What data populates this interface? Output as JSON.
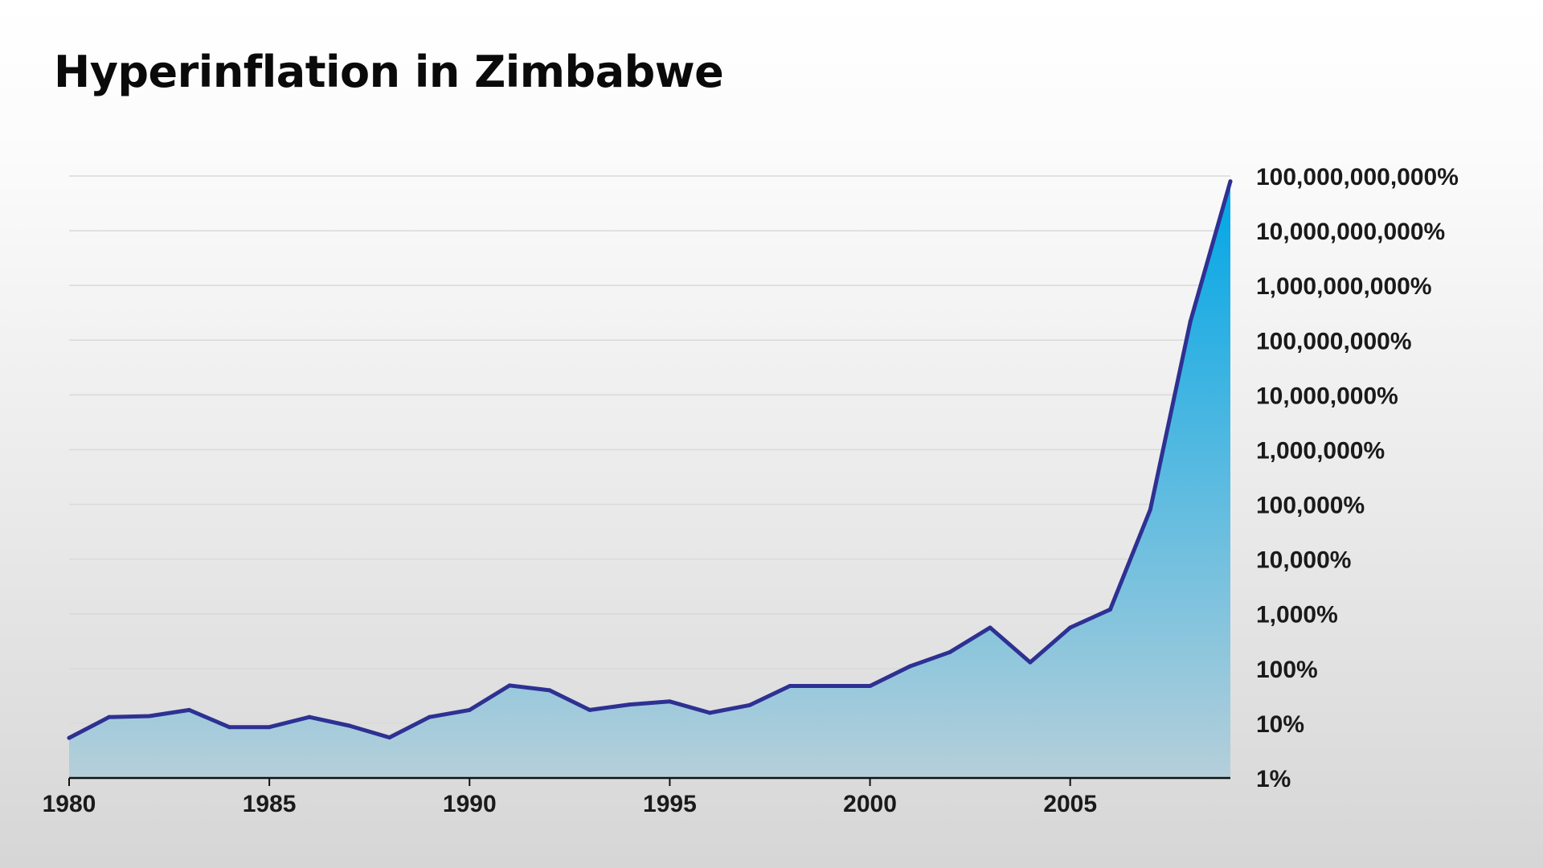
{
  "title": "Hyperinflation in Zimbabwe",
  "colors": {
    "line": "#2e3192",
    "area_top": "#00a6e6",
    "area_bottom": "#b5cfda",
    "grid": "#d9d9d9",
    "axis": "#111111"
  },
  "chart_data": {
    "type": "area",
    "title": "Hyperinflation in Zimbabwe",
    "xlabel": "",
    "ylabel": "",
    "y_scale": "log10",
    "y_unit": "%",
    "xlim": [
      1980,
      2009
    ],
    "ylim": [
      1,
      100000000000
    ],
    "grid": true,
    "legend": "none",
    "x_ticks": [
      1980,
      1985,
      1990,
      1995,
      2000,
      2005
    ],
    "x_tick_labels": [
      "1980",
      "1985",
      "1990",
      "1995",
      "2000",
      "2005"
    ],
    "y_ticks": [
      1,
      10,
      100,
      1000,
      10000,
      100000,
      1000000,
      10000000,
      100000000,
      1000000000,
      10000000000,
      100000000000
    ],
    "y_tick_labels": [
      "1%",
      "10%",
      "100%",
      "1,000%",
      "10,000%",
      "100,000%",
      "1,000,000%",
      "10,000,000%",
      "100,000,000%",
      "1,000,000,000%",
      "10,000,000,000%",
      "100,000,000,000%"
    ],
    "series": [
      {
        "x": [
          1980,
          1981,
          1982,
          1983,
          1984,
          1985,
          1986,
          1987,
          1988,
          1989,
          1990,
          1991,
          1992,
          1993,
          1994,
          1995,
          1996,
          1997,
          1998,
          1999,
          2000,
          2001,
          2002,
          2003,
          2004,
          2005,
          2006,
          2007,
          2008,
          2009
        ],
        "values": [
          5.4,
          13,
          13.5,
          17.5,
          8.5,
          8.5,
          13,
          9,
          5.5,
          13,
          17.5,
          49,
          40,
          17.5,
          22,
          25,
          15.5,
          21.5,
          48,
          48,
          48,
          110,
          200,
          560,
          130,
          560,
          1200,
          80000,
          220000000,
          80000000000
        ]
      }
    ]
  }
}
